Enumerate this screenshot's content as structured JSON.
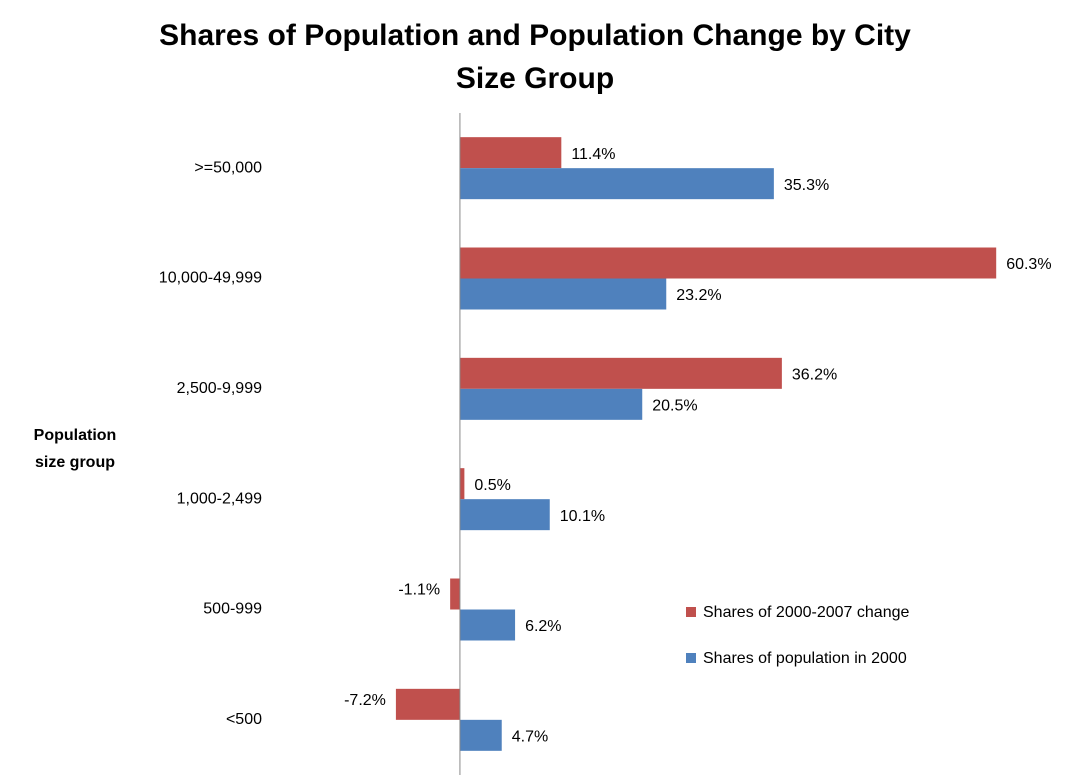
{
  "chart_data": {
    "type": "hbar",
    "title": "Shares of Population and Population Change by City Size Group",
    "y_label": "Population size group",
    "categories": [
      ">=50,000",
      "10,000-49,999",
      "2,500-9,999",
      "1,000-2,499",
      "500-999",
      "<500"
    ],
    "series": [
      {
        "name": "Shares of 2000-2007 change",
        "color": "#c0504d",
        "values": [
          11.4,
          60.3,
          36.2,
          0.5,
          -1.1,
          -7.2
        ],
        "value_labels": [
          "11.4%",
          "60.3%",
          "36.2%",
          "0.5%",
          "-1.1%",
          "-7.2%"
        ]
      },
      {
        "name": "Shares of population in 2000",
        "color": "#4f81bd",
        "values": [
          35.3,
          23.2,
          20.5,
          10.1,
          6.2,
          4.7
        ],
        "value_labels": [
          "35.3%",
          "23.2%",
          "20.5%",
          "10.1%",
          "6.2%",
          "4.7%"
        ]
      }
    ],
    "xlim": [
      -10,
      65
    ],
    "legend": "right"
  }
}
